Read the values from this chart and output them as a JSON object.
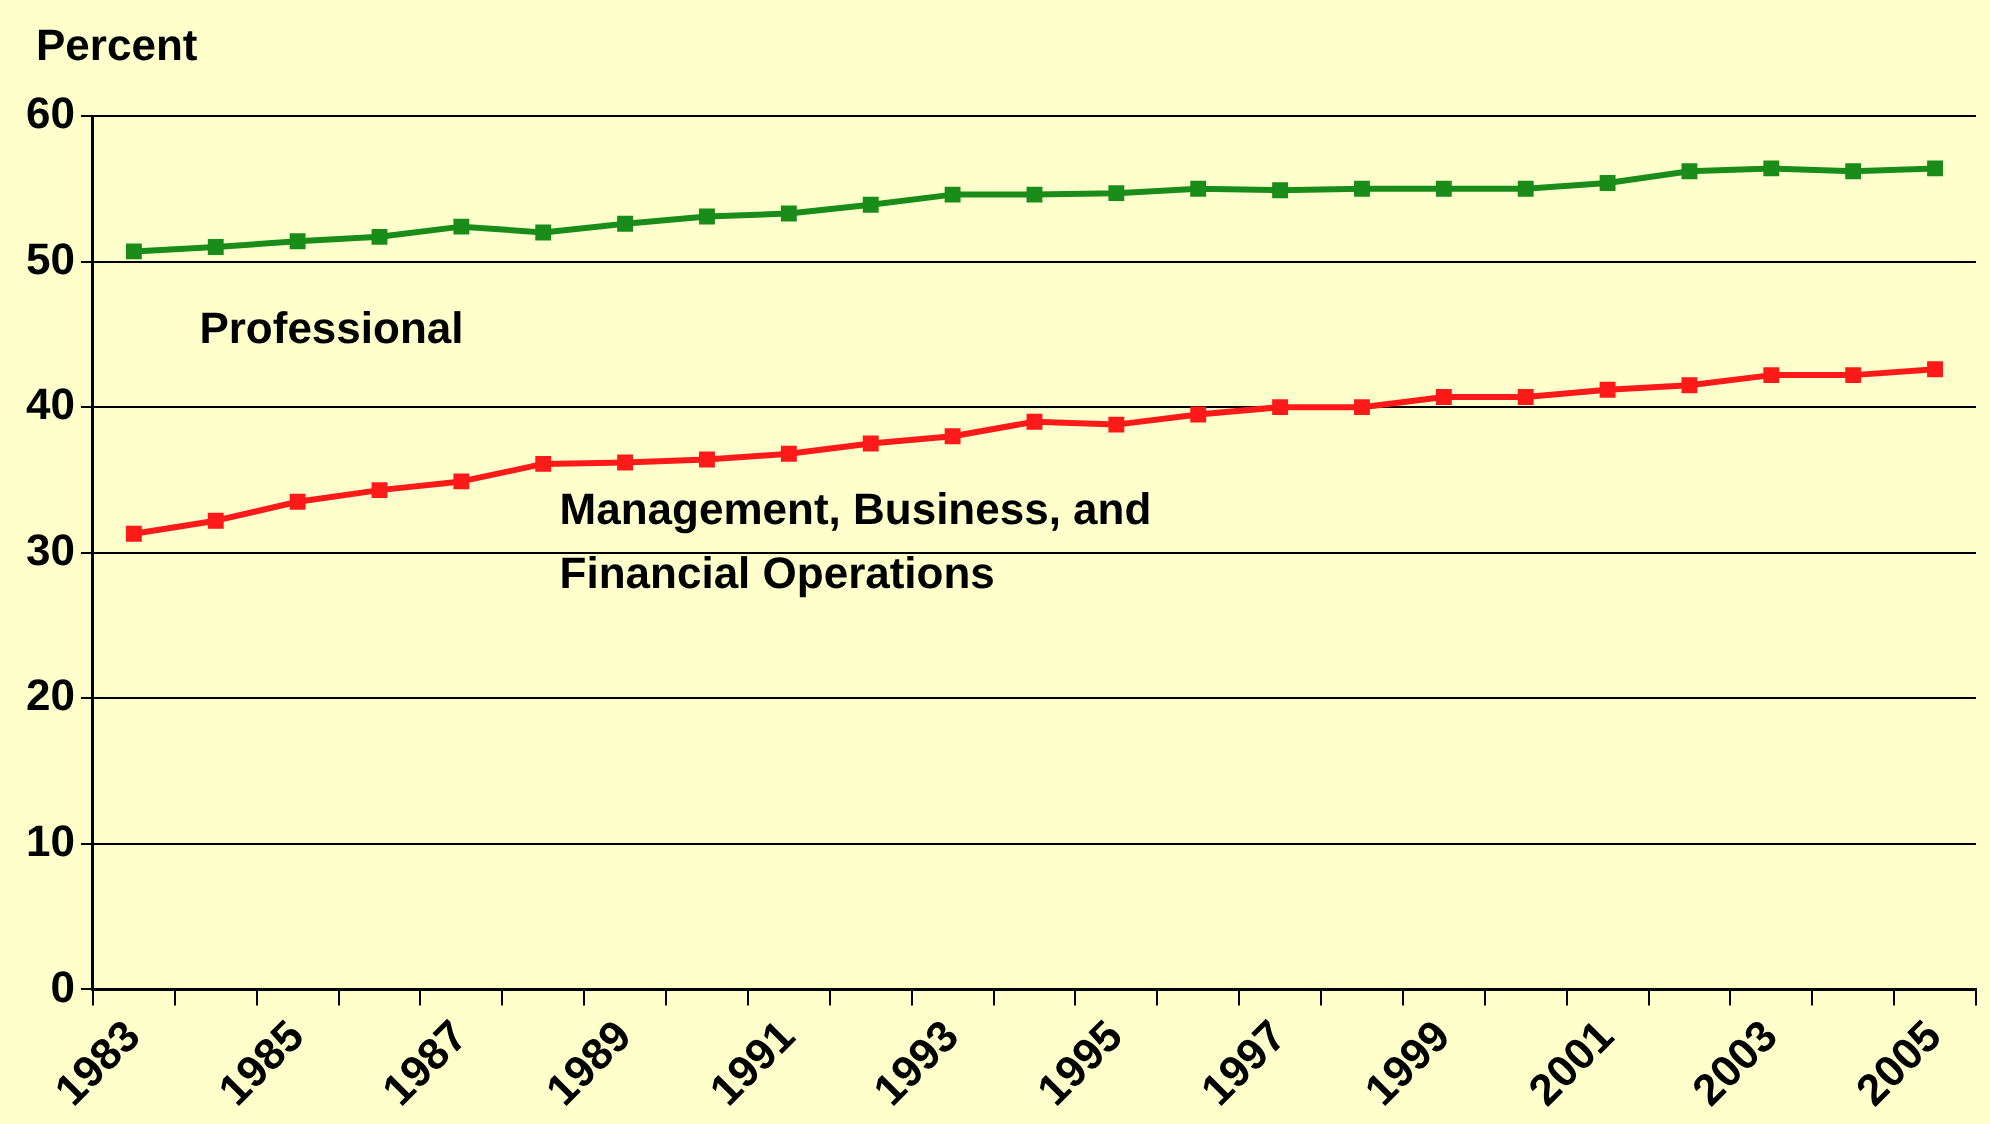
{
  "chart_data": {
    "type": "line",
    "ylabel": "Percent",
    "categories": [
      "1983",
      null,
      "1985",
      null,
      "1987",
      null,
      "1989",
      null,
      "1991",
      null,
      "1993",
      null,
      "1995",
      null,
      "1997",
      null,
      "1999",
      null,
      "2001",
      null,
      "2003",
      null,
      "2005"
    ],
    "series": [
      {
        "name": "Professional",
        "color": "#1a8c1a",
        "values": [
          50.7,
          51.0,
          51.4,
          51.7,
          52.4,
          52.0,
          52.6,
          53.1,
          53.3,
          53.9,
          54.6,
          54.6,
          54.7,
          55.0,
          54.9,
          55.0,
          55.0,
          55.0,
          55.4,
          56.2,
          56.4,
          56.2,
          56.4
        ]
      },
      {
        "name": "Management, Business, and Financial Operations",
        "color": "#ff1a1a",
        "values": [
          31.3,
          32.2,
          33.5,
          34.3,
          34.9,
          36.1,
          36.2,
          36.4,
          36.8,
          37.5,
          38.0,
          39.0,
          38.8,
          39.5,
          40.0,
          40.0,
          40.7,
          40.7,
          41.2,
          41.5,
          42.2,
          42.2,
          42.6
        ]
      }
    ],
    "ylim": [
      0,
      60
    ],
    "yticks": [
      0,
      10,
      20,
      30,
      40,
      50,
      60
    ],
    "grid": "y",
    "marker": "square",
    "line_style": "solid",
    "legend": false
  }
}
